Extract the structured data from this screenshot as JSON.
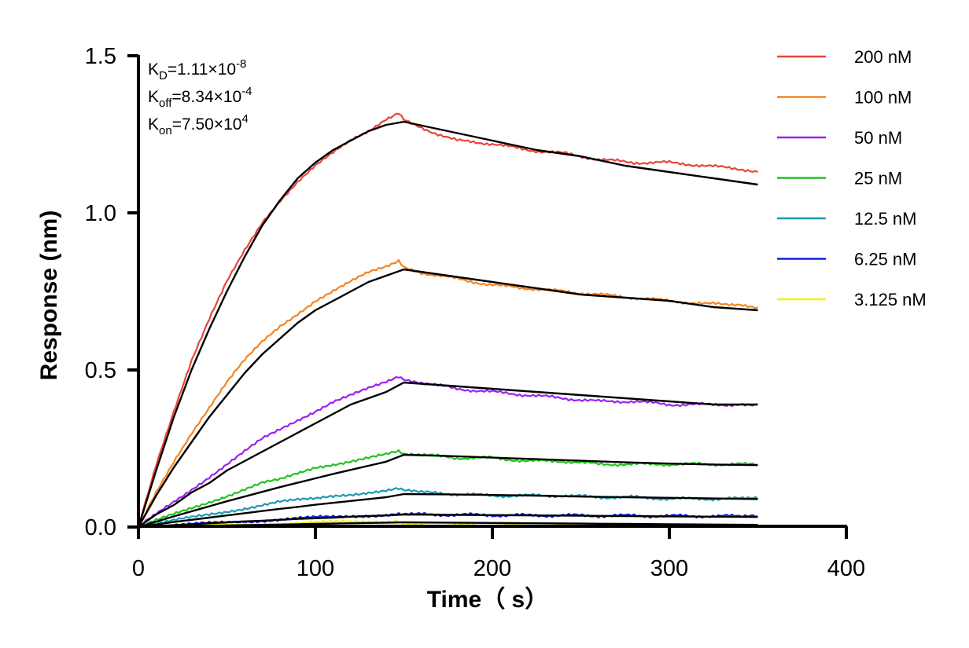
{
  "chart_data": {
    "type": "line",
    "title": "",
    "xlabel": "Time（ s）",
    "ylabel": "Response (nm)",
    "xlim": [
      0,
      400
    ],
    "ylim": [
      0,
      1.5
    ],
    "xticks": [
      "0",
      "100",
      "200",
      "300",
      "400"
    ],
    "yticks": [
      "0.0",
      "0.5",
      "1.0",
      "1.5"
    ],
    "grid": false,
    "legend_position": "right",
    "kinetics": [
      {
        "symbol": "K",
        "sub": "D",
        "mantissa": "=1.11×10",
        "exp": "-8"
      },
      {
        "symbol": "K",
        "sub": "off",
        "mantissa": "=8.34×10",
        "exp": "-4"
      },
      {
        "symbol": "K",
        "sub": "on",
        "mantissa": "=7.50×10",
        "exp": "4"
      }
    ],
    "association_end": 150,
    "end_time": 350,
    "series": [
      {
        "name": "200 nM",
        "color": "#e8453c",
        "x": [
          0,
          10,
          20,
          30,
          40,
          50,
          60,
          70,
          80,
          90,
          100,
          110,
          120,
          130,
          140,
          147,
          150,
          160,
          180,
          200,
          220,
          240,
          260,
          280,
          300,
          320,
          340,
          350
        ],
        "y": [
          0,
          0.2,
          0.37,
          0.53,
          0.66,
          0.78,
          0.88,
          0.97,
          1.04,
          1.1,
          1.15,
          1.19,
          1.23,
          1.26,
          1.3,
          1.32,
          1.3,
          1.27,
          1.23,
          1.22,
          1.2,
          1.19,
          1.17,
          1.16,
          1.16,
          1.15,
          1.14,
          1.13
        ]
      },
      {
        "name": "100 nM",
        "color": "#f58420",
        "x": [
          0,
          10,
          20,
          30,
          40,
          50,
          60,
          70,
          80,
          90,
          100,
          110,
          120,
          130,
          140,
          147,
          150,
          160,
          180,
          200,
          220,
          240,
          260,
          280,
          300,
          320,
          340,
          350
        ],
        "y": [
          0,
          0.11,
          0.21,
          0.3,
          0.38,
          0.46,
          0.53,
          0.59,
          0.64,
          0.68,
          0.72,
          0.75,
          0.78,
          0.81,
          0.83,
          0.85,
          0.83,
          0.81,
          0.79,
          0.77,
          0.76,
          0.75,
          0.74,
          0.73,
          0.72,
          0.71,
          0.71,
          0.7
        ]
      },
      {
        "name": "50 nM",
        "color": "#a020f0",
        "x": [
          0,
          10,
          20,
          30,
          40,
          50,
          60,
          70,
          80,
          90,
          100,
          110,
          120,
          130,
          140,
          147,
          150,
          160,
          180,
          200,
          220,
          240,
          260,
          280,
          300,
          320,
          340,
          350
        ],
        "y": [
          0,
          0.04,
          0.08,
          0.12,
          0.16,
          0.2,
          0.24,
          0.28,
          0.31,
          0.34,
          0.37,
          0.4,
          0.42,
          0.44,
          0.46,
          0.48,
          0.47,
          0.46,
          0.44,
          0.43,
          0.42,
          0.41,
          0.4,
          0.4,
          0.39,
          0.39,
          0.39,
          0.39
        ]
      },
      {
        "name": "25 nM",
        "color": "#22c41f",
        "x": [
          0,
          10,
          20,
          30,
          40,
          50,
          60,
          70,
          80,
          90,
          100,
          110,
          120,
          130,
          140,
          147,
          150,
          160,
          180,
          200,
          220,
          240,
          260,
          280,
          300,
          320,
          340,
          350
        ],
        "y": [
          0,
          0.02,
          0.04,
          0.06,
          0.08,
          0.1,
          0.12,
          0.14,
          0.15,
          0.17,
          0.19,
          0.2,
          0.21,
          0.22,
          0.23,
          0.24,
          0.23,
          0.23,
          0.22,
          0.22,
          0.21,
          0.21,
          0.2,
          0.2,
          0.2,
          0.2,
          0.2,
          0.2
        ]
      },
      {
        "name": "12.5 nM",
        "color": "#1f9bb0",
        "x": [
          0,
          10,
          20,
          30,
          40,
          50,
          60,
          70,
          80,
          90,
          100,
          110,
          120,
          130,
          140,
          147,
          150,
          160,
          180,
          200,
          220,
          240,
          260,
          280,
          300,
          320,
          340,
          350
        ],
        "y": [
          0,
          0.01,
          0.02,
          0.03,
          0.04,
          0.05,
          0.06,
          0.07,
          0.08,
          0.085,
          0.09,
          0.1,
          0.105,
          0.11,
          0.115,
          0.12,
          0.115,
          0.11,
          0.105,
          0.1,
          0.1,
          0.1,
          0.095,
          0.095,
          0.09,
          0.09,
          0.09,
          0.09
        ]
      },
      {
        "name": "6.25 nM",
        "color": "#1122dd",
        "x": [
          0,
          10,
          20,
          30,
          40,
          50,
          60,
          70,
          80,
          90,
          100,
          110,
          120,
          130,
          140,
          147,
          150,
          160,
          180,
          200,
          220,
          240,
          260,
          280,
          300,
          320,
          340,
          350
        ],
        "y": [
          0,
          0.002,
          0.005,
          0.008,
          0.012,
          0.015,
          0.018,
          0.021,
          0.024,
          0.027,
          0.03,
          0.032,
          0.035,
          0.037,
          0.039,
          0.04,
          0.04,
          0.04,
          0.039,
          0.038,
          0.037,
          0.037,
          0.036,
          0.036,
          0.035,
          0.035,
          0.034,
          0.034
        ]
      },
      {
        "name": "3.125 nM",
        "color": "#f7f000",
        "x": [
          0,
          10,
          20,
          30,
          40,
          50,
          60,
          70,
          80,
          90,
          100,
          110,
          120,
          130,
          140,
          147,
          150,
          160,
          180,
          200,
          220,
          240,
          260,
          280,
          300,
          320,
          340,
          350
        ],
        "y": [
          0,
          0,
          0.002,
          0.004,
          0.005,
          0.006,
          0.008,
          0.01,
          0.011,
          0.013,
          0.014,
          0.015,
          0.016,
          0.017,
          0.018,
          0.02,
          0.01,
          0.006,
          0.005,
          0.004,
          0.004,
          0.003,
          0.003,
          0.003,
          0.002,
          0.002,
          0.002,
          0.002
        ]
      }
    ],
    "fits": [
      {
        "x": [
          0,
          10,
          20,
          30,
          40,
          50,
          60,
          70,
          80,
          90,
          100,
          110,
          120,
          130,
          140,
          150,
          175,
          200,
          225,
          250,
          275,
          300,
          325,
          350
        ],
        "y": [
          0,
          0.18,
          0.35,
          0.5,
          0.63,
          0.75,
          0.86,
          0.96,
          1.04,
          1.11,
          1.16,
          1.2,
          1.23,
          1.26,
          1.28,
          1.29,
          1.26,
          1.23,
          1.2,
          1.18,
          1.15,
          1.13,
          1.11,
          1.09
        ]
      },
      {
        "x": [
          0,
          10,
          20,
          30,
          40,
          50,
          60,
          70,
          80,
          90,
          100,
          110,
          120,
          130,
          140,
          150,
          175,
          200,
          225,
          250,
          275,
          300,
          325,
          350
        ],
        "y": [
          0,
          0.1,
          0.19,
          0.27,
          0.35,
          0.42,
          0.49,
          0.55,
          0.6,
          0.65,
          0.69,
          0.72,
          0.75,
          0.78,
          0.8,
          0.82,
          0.8,
          0.78,
          0.76,
          0.74,
          0.73,
          0.72,
          0.7,
          0.69
        ]
      },
      {
        "x": [
          0,
          10,
          20,
          30,
          40,
          50,
          60,
          70,
          80,
          90,
          100,
          110,
          120,
          130,
          140,
          150,
          175,
          200,
          225,
          250,
          275,
          300,
          325,
          350
        ],
        "y": [
          0,
          0.04,
          0.07,
          0.11,
          0.14,
          0.18,
          0.21,
          0.24,
          0.27,
          0.3,
          0.33,
          0.36,
          0.39,
          0.41,
          0.43,
          0.46,
          0.45,
          0.44,
          0.43,
          0.42,
          0.41,
          0.4,
          0.39,
          0.39
        ]
      },
      {
        "x": [
          0,
          10,
          20,
          30,
          40,
          50,
          60,
          70,
          80,
          90,
          100,
          110,
          120,
          130,
          140,
          150,
          175,
          200,
          225,
          250,
          275,
          300,
          325,
          350
        ],
        "y": [
          0,
          0.017,
          0.034,
          0.05,
          0.066,
          0.082,
          0.097,
          0.112,
          0.127,
          0.141,
          0.155,
          0.169,
          0.182,
          0.195,
          0.208,
          0.23,
          0.226,
          0.221,
          0.216,
          0.211,
          0.206,
          0.202,
          0.199,
          0.197
        ]
      },
      {
        "x": [
          0,
          10,
          20,
          30,
          40,
          50,
          60,
          70,
          80,
          90,
          100,
          110,
          120,
          130,
          140,
          150,
          175,
          200,
          225,
          250,
          275,
          300,
          325,
          350
        ],
        "y": [
          0,
          0.008,
          0.016,
          0.023,
          0.03,
          0.037,
          0.044,
          0.051,
          0.058,
          0.064,
          0.071,
          0.077,
          0.083,
          0.089,
          0.095,
          0.105,
          0.104,
          0.102,
          0.1,
          0.097,
          0.095,
          0.093,
          0.091,
          0.089
        ]
      },
      {
        "x": [
          0,
          10,
          20,
          30,
          40,
          50,
          60,
          70,
          80,
          90,
          100,
          110,
          120,
          130,
          140,
          150,
          175,
          200,
          225,
          250,
          275,
          300,
          325,
          350
        ],
        "y": [
          0,
          0.003,
          0.006,
          0.009,
          0.012,
          0.015,
          0.018,
          0.02,
          0.023,
          0.026,
          0.028,
          0.03,
          0.033,
          0.035,
          0.037,
          0.04,
          0.039,
          0.038,
          0.037,
          0.036,
          0.035,
          0.034,
          0.033,
          0.032
        ]
      },
      {
        "x": [
          0,
          10,
          20,
          30,
          40,
          50,
          60,
          70,
          80,
          90,
          100,
          110,
          120,
          130,
          140,
          150,
          175,
          200,
          225,
          250,
          275,
          300,
          325,
          350
        ],
        "y": [
          0,
          0.001,
          0.002,
          0.003,
          0.004,
          0.005,
          0.006,
          0.007,
          0.008,
          0.009,
          0.01,
          0.011,
          0.012,
          0.013,
          0.014,
          0.015,
          0.014,
          0.013,
          0.012,
          0.011,
          0.01,
          0.009,
          0.008,
          0.007
        ]
      }
    ]
  }
}
